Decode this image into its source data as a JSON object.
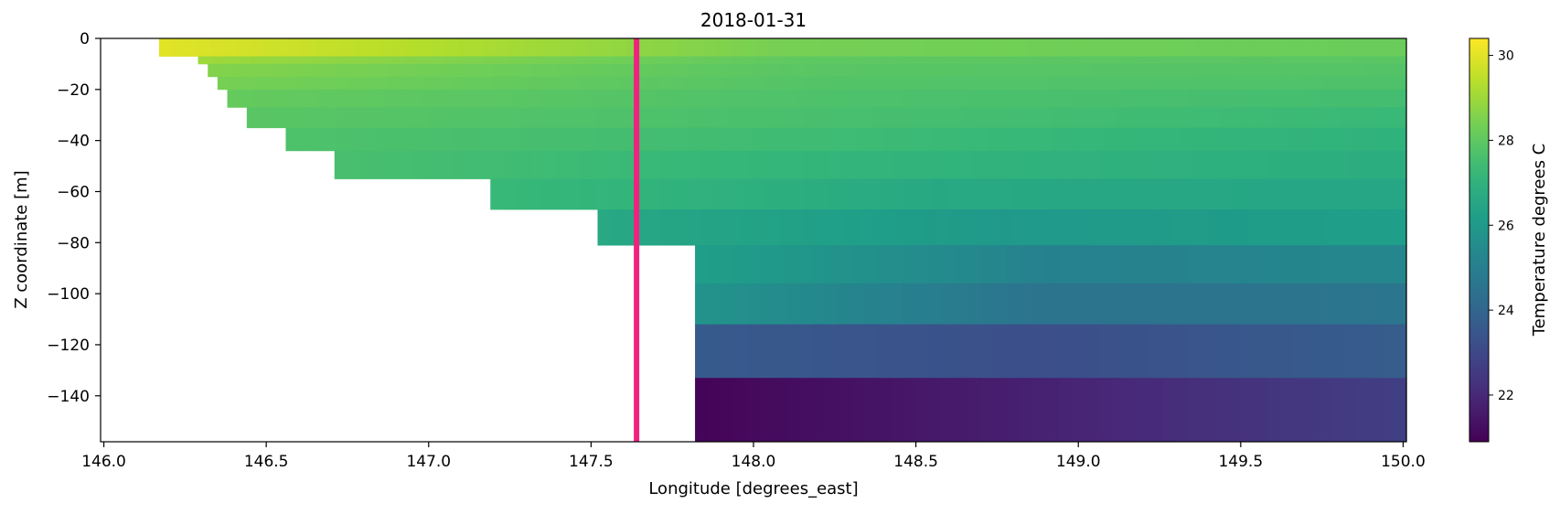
{
  "chart_data": {
    "type": "heatmap",
    "title": "2018-01-31",
    "xlabel": "Longitude [degrees_east]",
    "ylabel": "Z coordinate [m]",
    "xlim": [
      145.99,
      150.01
    ],
    "ylim": [
      -158,
      0
    ],
    "x_ticks": [
      146.0,
      146.5,
      147.0,
      147.5,
      148.0,
      148.5,
      149.0,
      149.5,
      150.0
    ],
    "x_tick_labels": [
      "146.0",
      "146.5",
      "147.0",
      "147.5",
      "148.0",
      "148.5",
      "149.0",
      "149.5",
      "150.0"
    ],
    "y_ticks": [
      0,
      -20,
      -40,
      -60,
      -80,
      -100,
      -120,
      -140
    ],
    "y_tick_labels": [
      "0",
      "−20",
      "−40",
      "−60",
      "−80",
      "−100",
      "−120",
      "−140"
    ],
    "colorbar": {
      "label": "Temperature degrees C",
      "colormap": "viridis",
      "vmin": 20.9,
      "vmax": 30.4,
      "ticks": [
        22,
        24,
        26,
        28,
        30
      ],
      "tick_labels": [
        "22",
        "24",
        "26",
        "28",
        "30"
      ]
    },
    "depth_layers": [
      {
        "top": 0,
        "bottom": -7,
        "start_lon": 146.17,
        "t_west": 30.0,
        "t_mid": 28.4,
        "t_east": 28.2
      },
      {
        "top": -7,
        "bottom": -10,
        "start_lon": 146.29,
        "t_west": 29.0,
        "t_mid": 28.0,
        "t_east": 27.9
      },
      {
        "top": -10,
        "bottom": -15,
        "start_lon": 146.32,
        "t_west": 28.6,
        "t_mid": 27.9,
        "t_east": 27.8
      },
      {
        "top": -15,
        "bottom": -20,
        "start_lon": 146.35,
        "t_west": 28.4,
        "t_mid": 27.8,
        "t_east": 27.7
      },
      {
        "top": -20,
        "bottom": -27,
        "start_lon": 146.38,
        "t_west": 28.1,
        "t_mid": 27.7,
        "t_east": 27.5
      },
      {
        "top": -27,
        "bottom": -35,
        "start_lon": 146.44,
        "t_west": 27.9,
        "t_mid": 27.6,
        "t_east": 27.3
      },
      {
        "top": -35,
        "bottom": -44,
        "start_lon": 146.56,
        "t_west": 27.7,
        "t_mid": 27.4,
        "t_east": 27.0
      },
      {
        "top": -44,
        "bottom": -55,
        "start_lon": 146.71,
        "t_west": 27.6,
        "t_mid": 27.1,
        "t_east": 26.8
      },
      {
        "top": -55,
        "bottom": -67,
        "start_lon": 147.19,
        "t_west": 27.3,
        "t_mid": 26.6,
        "t_east": 26.5
      },
      {
        "top": -67,
        "bottom": -81,
        "start_lon": 147.52,
        "t_west": 26.6,
        "t_mid": 26.0,
        "t_east": 26.2
      },
      {
        "top": -81,
        "bottom": -96,
        "start_lon": 147.82,
        "t_west": 26.2,
        "t_mid": 25.1,
        "t_east": 25.3
      },
      {
        "top": -96,
        "bottom": -112,
        "start_lon": 147.82,
        "t_west": 25.8,
        "t_mid": 24.5,
        "t_east": 24.6
      },
      {
        "top": -112,
        "bottom": -133,
        "start_lon": 147.82,
        "t_west": 23.6,
        "t_mid": 23.2,
        "t_east": 23.7
      },
      {
        "top": -133,
        "bottom": -158,
        "start_lon": 147.82,
        "t_west": 21.0,
        "t_mid": 21.8,
        "t_east": 22.7
      }
    ],
    "marker_line": {
      "lon": 147.64,
      "color": "#f0227f"
    }
  }
}
